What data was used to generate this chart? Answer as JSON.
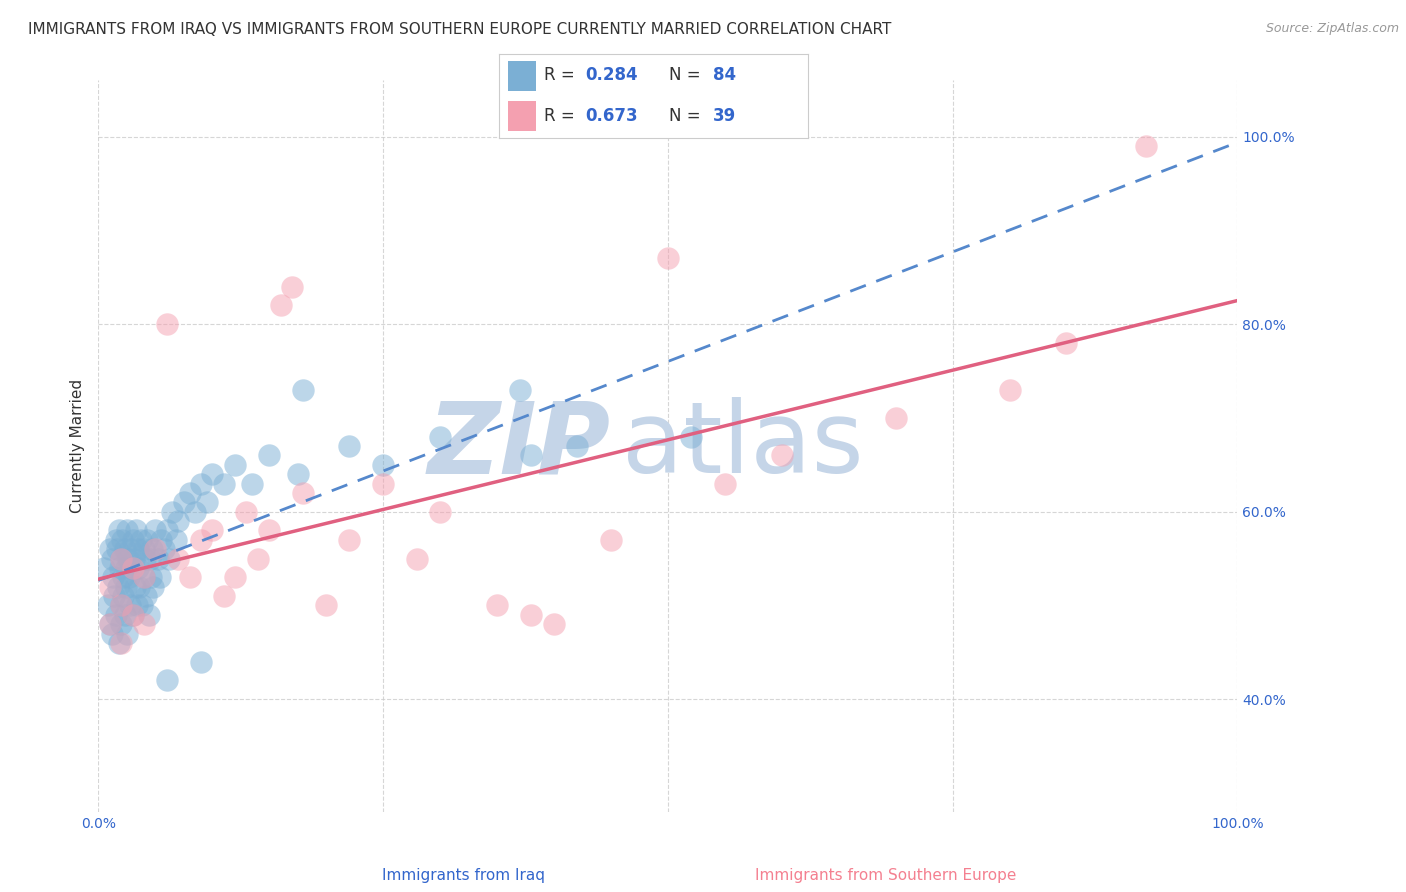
{
  "title": "IMMIGRANTS FROM IRAQ VS IMMIGRANTS FROM SOUTHERN EUROPE CURRENTLY MARRIED CORRELATION CHART",
  "source": "Source: ZipAtlas.com",
  "xlabel_bottom": [
    "Immigrants from Iraq",
    "Immigrants from Southern Europe"
  ],
  "ylabel": "Currently Married",
  "r_iraq": 0.284,
  "n_iraq": 84,
  "r_southern": 0.673,
  "n_southern": 39,
  "color_iraq": "#7bafd4",
  "color_southern": "#f4a0b0",
  "line_color_iraq": "#5588cc",
  "line_color_southern": "#e06080",
  "watermark_zip": "ZIP",
  "watermark_atlas": "atlas",
  "color_zip": "#c5d5e8",
  "color_atlas": "#c5d5e8",
  "xlim": [
    0.0,
    1.0
  ],
  "ylim": [
    0.28,
    1.06
  ],
  "x_ticks": [
    0.0,
    0.25,
    0.5,
    0.75,
    1.0
  ],
  "x_tick_labels": [
    "0.0%",
    "",
    "",
    "",
    "100.0%"
  ],
  "y_ticks": [
    0.4,
    0.6,
    0.8,
    1.0
  ],
  "y_tick_labels": [
    "40.0%",
    "60.0%",
    "80.0%",
    "100.0%"
  ],
  "background_color": "#ffffff",
  "grid_color": "#cccccc",
  "title_fontsize": 11,
  "axis_label_fontsize": 11,
  "tick_fontsize": 10,
  "legend_fontsize": 13
}
